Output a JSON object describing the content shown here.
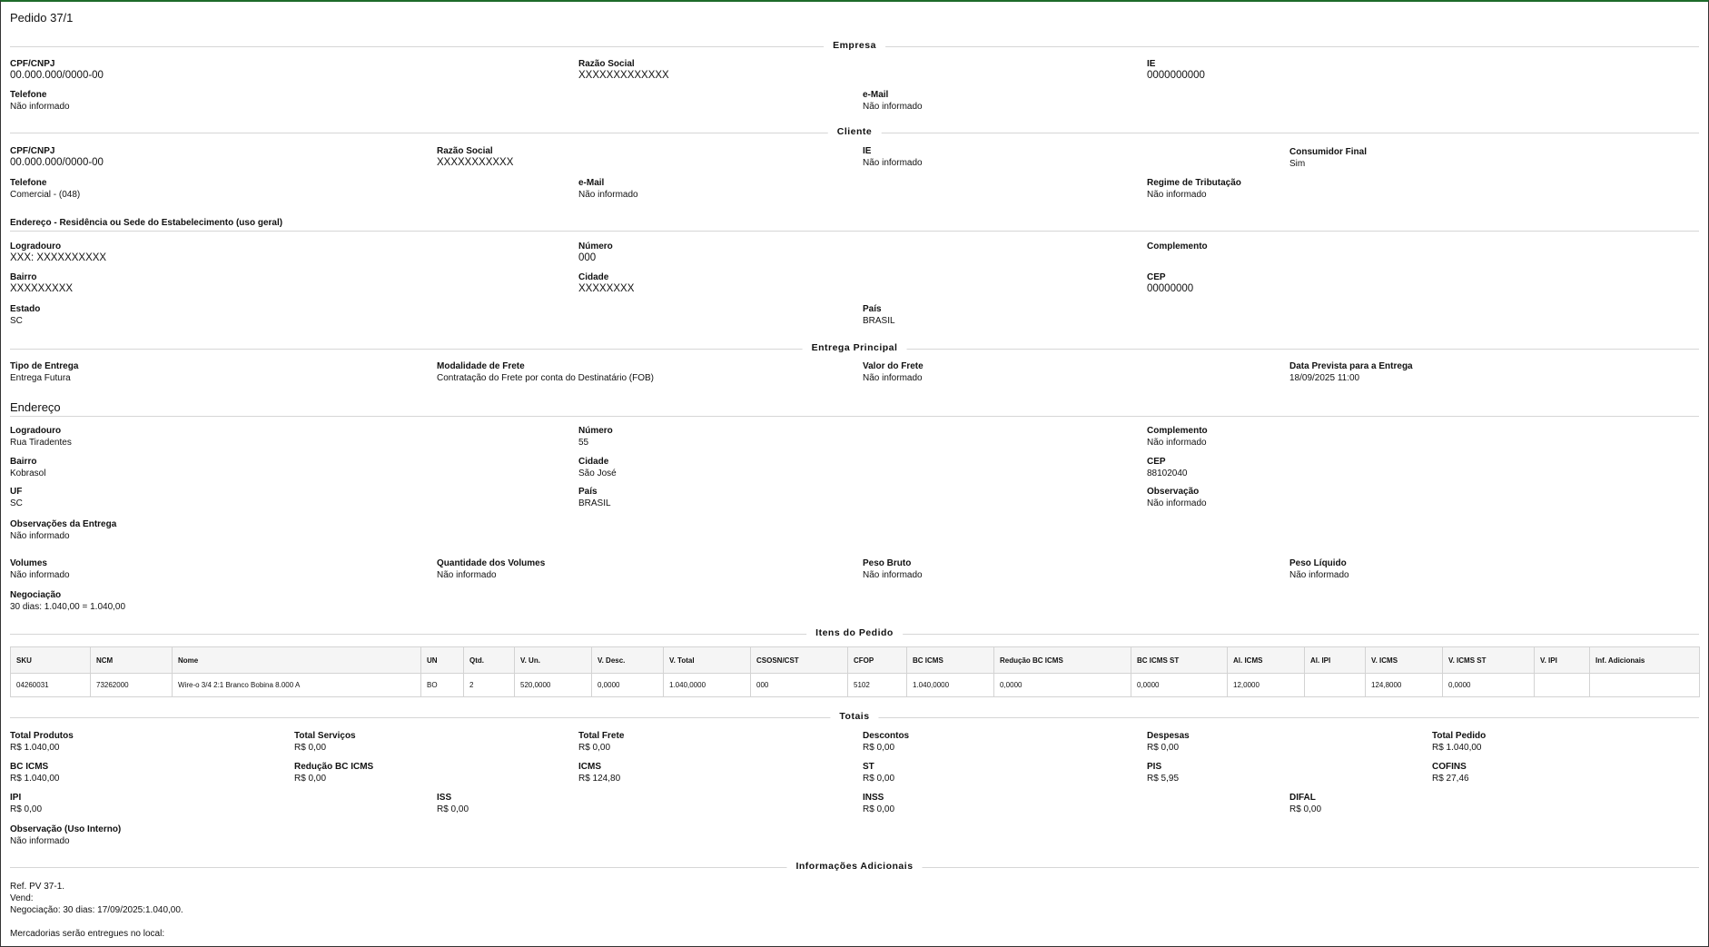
{
  "title": "Pedido 37/1",
  "sections": {
    "empresa": "Empresa",
    "cliente": "Cliente",
    "endereco_cliente": "Endereço - Residência ou Sede do Estabelecimento (uso geral)",
    "entrega": "Entrega Principal",
    "endereco_entrega": "Endereço",
    "itens": "Itens do Pedido",
    "totais": "Totais",
    "info": "Informações Adicionais"
  },
  "empresa": {
    "cpf_label": "CPF/CNPJ",
    "cpf": "00.000.000/0000-00",
    "razao_label": "Razão Social",
    "razao": "XXXXXXXXXXXXX",
    "ie_label": "IE",
    "ie": "0000000000",
    "tel_label": "Telefone",
    "tel": "Não informado",
    "email_label": "e-Mail",
    "email": "Não informado"
  },
  "cliente": {
    "cpf_label": "CPF/CNPJ",
    "cpf": "00.000.000/0000-00",
    "razao_label": "Razão Social",
    "razao": "XXXXXXXXXXX",
    "ie_label": "IE",
    "ie": "Não informado",
    "consumidor_label": "Consumidor Final",
    "consumidor": "Sim",
    "tel_label": "Telefone",
    "tel": "Comercial - (048)",
    "email_label": "e-Mail",
    "email": "Não informado",
    "regime_label": "Regime de Tributação",
    "regime": "Não informado"
  },
  "endereco_cliente": {
    "logradouro_label": "Logradouro",
    "logradouro": "XXX: XXXXXXXXXX",
    "numero_label": "Número",
    "numero": "000",
    "complemento_label": "Complemento",
    "complemento": "",
    "bairro_label": "Bairro",
    "bairro": "XXXXXXXXX",
    "cidade_label": "Cidade",
    "cidade": "XXXXXXXX",
    "cep_label": "CEP",
    "cep": "00000000",
    "estado_label": "Estado",
    "estado": "SC",
    "pais_label": "País",
    "pais": "BRASIL"
  },
  "entrega": {
    "tipo_label": "Tipo de Entrega",
    "tipo": "Entrega Futura",
    "modalidade_label": "Modalidade de Frete",
    "modalidade": "Contratação do Frete por conta do Destinatário (FOB)",
    "valor_label": "Valor do Frete",
    "valor": "Não informado",
    "data_label": "Data Prevista para a Entrega",
    "data": "18/09/2025 11:00"
  },
  "endereco_entrega": {
    "logradouro_label": "Logradouro",
    "logradouro": "Rua Tiradentes",
    "numero_label": "Número",
    "numero": "55",
    "complemento_label": "Complemento",
    "complemento": "Não informado",
    "bairro_label": "Bairro",
    "bairro": "Kobrasol",
    "cidade_label": "Cidade",
    "cidade": "São José",
    "cep_label": "CEP",
    "cep": "88102040",
    "uf_label": "UF",
    "uf": "SC",
    "pais_label": "País",
    "pais": "BRASIL",
    "obs_label": "Observação",
    "obs": "Não informado",
    "obs_entrega_label": "Observações da Entrega",
    "obs_entrega": "Não informado"
  },
  "volumes": {
    "volumes_label": "Volumes",
    "volumes": "Não informado",
    "qtd_label": "Quantidade dos Volumes",
    "qtd": "Não informado",
    "bruto_label": "Peso Bruto",
    "bruto": "Não informado",
    "liquido_label": "Peso Líquido",
    "liquido": "Não informado",
    "negociacao_label": "Negociação",
    "negociacao": "30 dias: 1.040,00 = 1.040,00"
  },
  "items": {
    "headers": [
      "SKU",
      "NCM",
      "Nome",
      "UN",
      "Qtd.",
      "V. Un.",
      "V. Desc.",
      "V. Total",
      "CSOSN/CST",
      "CFOP",
      "BC ICMS",
      "Redução BC ICMS",
      "BC ICMS ST",
      "Al. ICMS",
      "Al. IPI",
      "V. ICMS",
      "V. ICMS ST",
      "V. IPI",
      "Inf. Adicionais"
    ],
    "rows": [
      [
        "04260031",
        "73262000",
        "Wire-o 3/4 2:1 Branco Bobina 8.000 A",
        "BO",
        "2",
        "520,0000",
        "0,0000",
        "1.040,0000",
        "000",
        "5102",
        "1.040,0000",
        "0,0000",
        "0,0000",
        "12,0000",
        "",
        "124,8000",
        "0,0000",
        "",
        ""
      ]
    ]
  },
  "totais": {
    "total_produtos_label": "Total Produtos",
    "total_produtos": "R$ 1.040,00",
    "total_servicos_label": "Total Serviços",
    "total_servicos": "R$ 0,00",
    "total_frete_label": "Total Frete",
    "total_frete": "R$ 0,00",
    "descontos_label": "Descontos",
    "descontos": "R$ 0,00",
    "despesas_label": "Despesas",
    "despesas": "R$ 0,00",
    "total_pedido_label": "Total Pedido",
    "total_pedido": "R$ 1.040,00",
    "bc_icms_label": "BC ICMS",
    "bc_icms": "R$ 1.040,00",
    "reducao_label": "Redução BC ICMS",
    "reducao": "R$ 0,00",
    "icms_label": "ICMS",
    "icms": "R$ 124,80",
    "st_label": "ST",
    "st": "R$ 0,00",
    "pis_label": "PIS",
    "pis": "R$ 5,95",
    "cofins_label": "COFINS",
    "cofins": "R$ 27,46",
    "ipi_label": "IPI",
    "ipi": "R$ 0,00",
    "iss_label": "ISS",
    "iss": "R$ 0,00",
    "inss_label": "INSS",
    "inss": "R$ 0,00",
    "difal_label": "DIFAL",
    "difal": "R$ 0,00",
    "obs_interno_label": "Observação (Uso Interno)",
    "obs_interno": "Não informado"
  },
  "info": {
    "lines": [
      "Ref. PV 37-1.",
      "Vend:",
      "Negociação: 30 dias: 17/09/2025:1.040,00.",
      "",
      "Mercadorias serão entregues no local:"
    ]
  }
}
